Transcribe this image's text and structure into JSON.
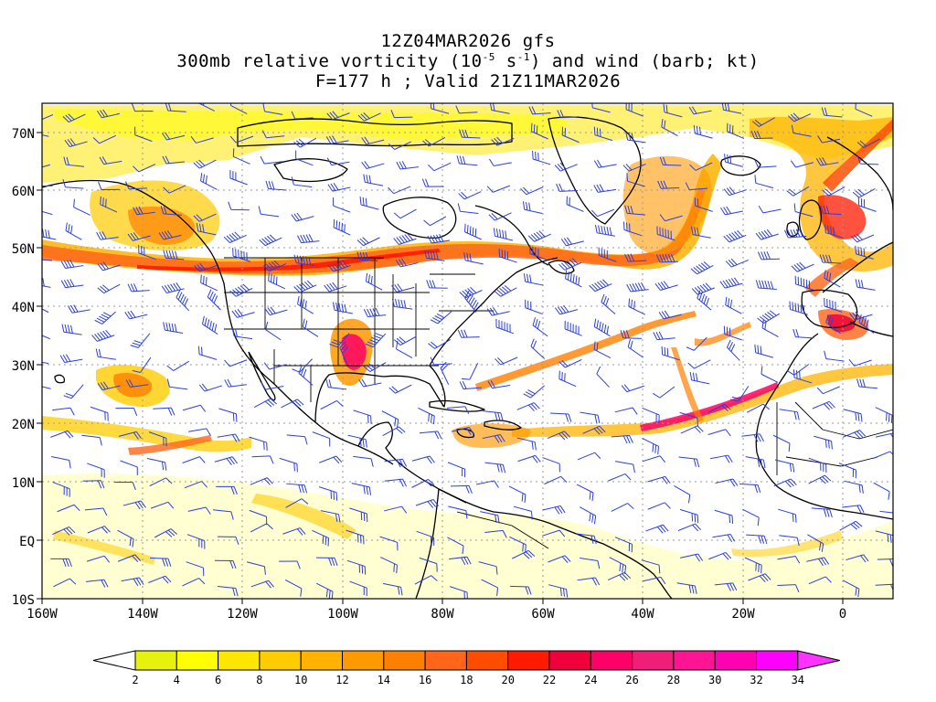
{
  "title": {
    "line1": "12Z04MAR2026 gfs",
    "line2_pre": "300mb relative vorticity (10",
    "line2_sup1": "-5",
    "line2_mid": " s",
    "line2_sup2": "-1",
    "line2_post": ") and wind (barb; kt)",
    "line3": "F=177 h ; Valid 21Z11MAR2026"
  },
  "map": {
    "lon_range": [
      -160,
      10
    ],
    "lat_range": [
      -10,
      75
    ],
    "lon_labels": [
      "160W",
      "140W",
      "120W",
      "100W",
      "80W",
      "60W",
      "40W",
      "20W",
      "0"
    ],
    "lat_labels": [
      "10S",
      "EQ",
      "10N",
      "20N",
      "30N",
      "40N",
      "50N",
      "60N",
      "70N"
    ],
    "barb_color": "#2a3fe0",
    "coast_color": "#000000"
  },
  "colorbar": {
    "labels": [
      "2",
      "4",
      "6",
      "8",
      "10",
      "12",
      "14",
      "16",
      "18",
      "20",
      "22",
      "24",
      "26",
      "28",
      "30",
      "32",
      "34"
    ],
    "colors": [
      "#ffffff",
      "#e6f20c",
      "#ffff00",
      "#ffe600",
      "#ffcc00",
      "#ffb300",
      "#ff9900",
      "#ff8000",
      "#ff6619",
      "#ff4d00",
      "#ff1a00",
      "#f0003a",
      "#ff0066",
      "#f01e78",
      "#ff1493",
      "#ff00b3",
      "#ff00ff",
      "#ff33ff"
    ]
  }
}
